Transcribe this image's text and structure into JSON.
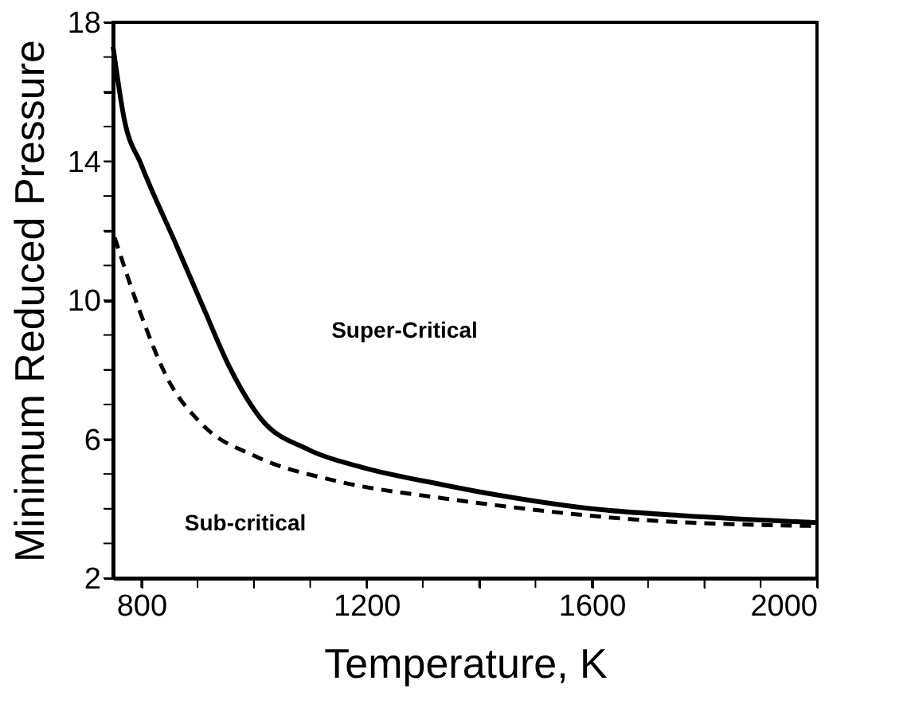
{
  "chart_data": {
    "type": "line",
    "xlabel": "Temperature, K",
    "ylabel": "Minimum Reduced Pressure",
    "series": [
      {
        "color": "#000000",
        "line_style": "solid",
        "x": [
          750,
          770,
          800,
          862,
          910,
          956,
          1012,
          1097,
          1190,
          1332,
          1430,
          1600,
          1762,
          2000
        ],
        "values": [
          17.3,
          15.2,
          13.9,
          11.6,
          9.8,
          8.1,
          6.6,
          5.7,
          5.2,
          4.7,
          4.4,
          4.0,
          3.8,
          3.6
        ]
      },
      {
        "color": "#000000",
        "line_style": "dashed",
        "x": [
          753,
          797,
          845,
          910,
          1004,
          1146,
          1336,
          1430,
          1668,
          2000
        ],
        "values": [
          11.8,
          9.7,
          7.8,
          6.4,
          5.5,
          4.8,
          4.3,
          4.1,
          3.7,
          3.5
        ]
      }
    ],
    "xlim": [
      750,
      2000
    ],
    "ylim": [
      2,
      18
    ],
    "xticks": [
      800,
      {
        "value": 900,
        "label": null
      },
      {
        "value": 1000,
        "label": null
      },
      {
        "value": 1100,
        "label": null
      },
      1200,
      {
        "value": 1300,
        "label": null
      },
      {
        "value": 1400,
        "label": null
      },
      {
        "value": 1500,
        "label": null
      },
      1600,
      {
        "value": 1700,
        "label": null
      },
      {
        "value": 1800,
        "label": null
      },
      {
        "value": 1900,
        "label": null
      },
      2000
    ],
    "yticks": [
      2,
      {
        "value": 3,
        "label": null
      },
      {
        "value": 4,
        "label": null
      },
      {
        "value": 5,
        "label": null
      },
      6,
      {
        "value": 7,
        "label": null
      },
      {
        "value": 8,
        "label": null
      },
      {
        "value": 9,
        "label": null
      },
      10,
      {
        "value": 11,
        "label": null
      },
      {
        "value": 12,
        "label": null
      },
      {
        "value": 13,
        "label": null
      },
      14,
      {
        "value": 15,
        "label": null
      },
      {
        "value": 16,
        "label": null
      },
      {
        "value": 17,
        "label": null
      },
      18
    ],
    "annotations": [
      "Super-Critical",
      "Sub-critical"
    ],
    "grid": false
  }
}
